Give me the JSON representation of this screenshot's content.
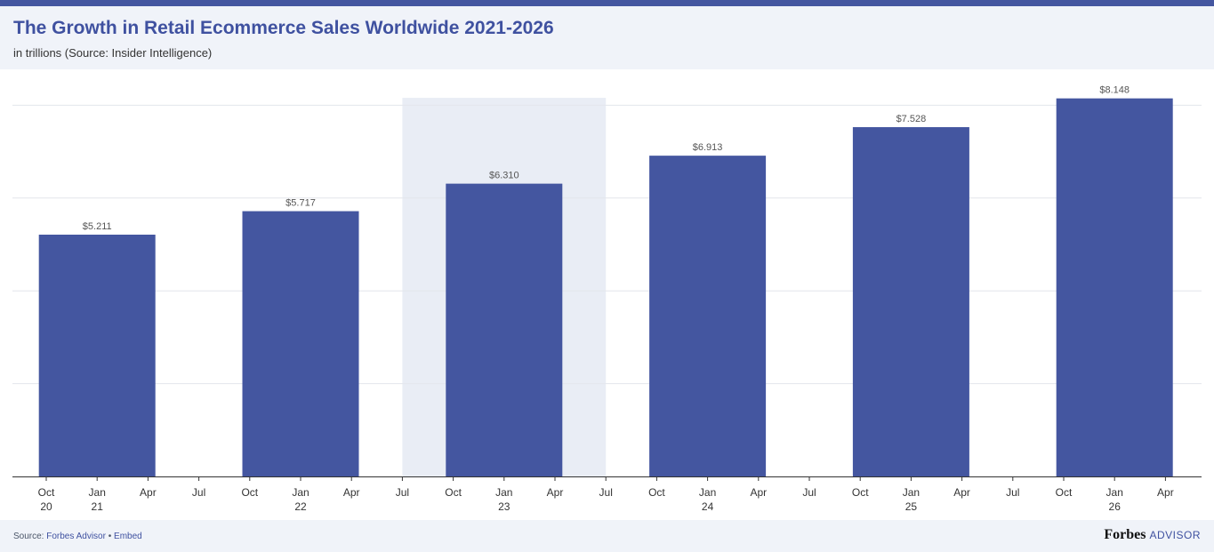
{
  "header": {
    "title": "The Growth in Retail Ecommerce Sales Worldwide 2021-2026",
    "subtitle": "in trillions (Source: Insider Intelligence)"
  },
  "footer": {
    "source_prefix": "Source:",
    "source_link": "Forbes Advisor",
    "separator": "•",
    "embed_link": "Embed",
    "brand_main": "Forbes",
    "brand_sub": "ADVISOR"
  },
  "colors": {
    "bar": "#4456a0",
    "highlight_band": "#e9edf5",
    "gridline": "#e3e6ec",
    "axis": "#333333",
    "value_label": "#555555",
    "title": "#3f51a0"
  },
  "chart_data": {
    "type": "bar",
    "title": "The Growth in Retail Ecommerce Sales Worldwide 2021-2026",
    "subtitle": "in trillions (Source: Insider Intelligence)",
    "xlabel": "",
    "ylabel": "",
    "ylim": [
      0,
      8
    ],
    "grid": true,
    "y_axis_labels_shown": false,
    "categories": [
      "2021",
      "2022",
      "2023",
      "2024",
      "2025",
      "2026"
    ],
    "values": [
      5.211,
      5.717,
      6.31,
      6.913,
      7.528,
      8.148
    ],
    "value_labels": [
      "$5.211",
      "$5.717",
      "$6.310",
      "$6.913",
      "$7.528",
      "$8.148"
    ],
    "highlighted_category": "2023",
    "x_ticks": [
      {
        "month": "Oct",
        "year": "20"
      },
      {
        "month": "Jan",
        "year": "21"
      },
      {
        "month": "Apr",
        "year": ""
      },
      {
        "month": "Jul",
        "year": ""
      },
      {
        "month": "Oct",
        "year": ""
      },
      {
        "month": "Jan",
        "year": "22"
      },
      {
        "month": "Apr",
        "year": ""
      },
      {
        "month": "Jul",
        "year": ""
      },
      {
        "month": "Oct",
        "year": ""
      },
      {
        "month": "Jan",
        "year": "23"
      },
      {
        "month": "Apr",
        "year": ""
      },
      {
        "month": "Jul",
        "year": ""
      },
      {
        "month": "Oct",
        "year": ""
      },
      {
        "month": "Jan",
        "year": "24"
      },
      {
        "month": "Apr",
        "year": ""
      },
      {
        "month": "Jul",
        "year": ""
      },
      {
        "month": "Oct",
        "year": ""
      },
      {
        "month": "Jan",
        "year": "25"
      },
      {
        "month": "Apr",
        "year": ""
      },
      {
        "month": "Jul",
        "year": ""
      },
      {
        "month": "Oct",
        "year": ""
      },
      {
        "month": "Jan",
        "year": "26"
      },
      {
        "month": "Apr",
        "year": ""
      }
    ]
  }
}
